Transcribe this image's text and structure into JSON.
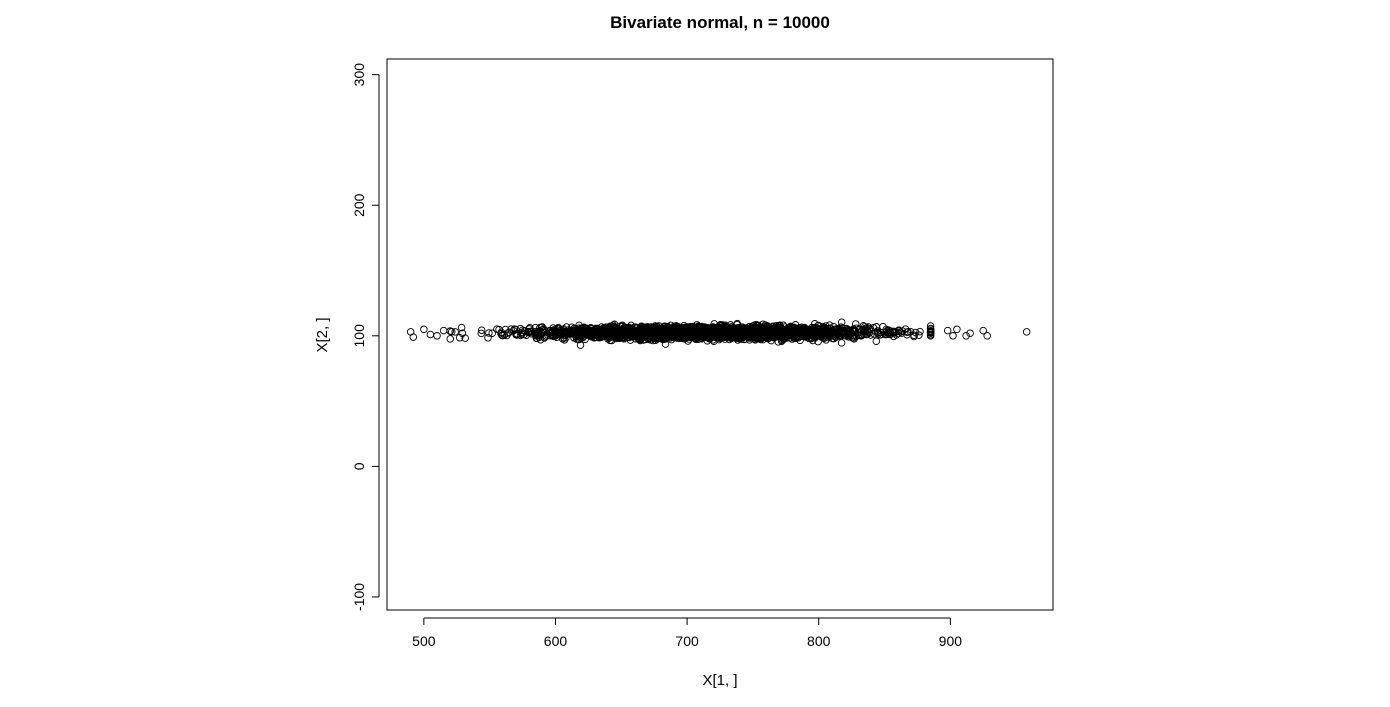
{
  "chart_data": {
    "type": "scatter",
    "title": "Bivariate normal, n = 10000",
    "xlabel": "X[1, ]",
    "ylabel": "X[2, ]",
    "xlim": [
      472,
      978
    ],
    "ylim": [
      -110,
      312
    ],
    "xticks": [
      500,
      600,
      700,
      800,
      900
    ],
    "yticks": [
      -100,
      0,
      100,
      200,
      300
    ],
    "marker": "open-circle",
    "n": 10000,
    "grid": false,
    "legend": "none",
    "colors": {
      "points": "#000000",
      "axes": "#000000",
      "background": "#ffffff"
    },
    "points": [
      [
        490,
        103
      ],
      [
        492,
        99
      ],
      [
        500,
        105
      ],
      [
        505,
        101
      ],
      [
        510,
        100
      ],
      [
        515,
        104
      ],
      [
        898,
        104
      ],
      [
        902,
        100
      ],
      [
        905,
        105
      ],
      [
        912,
        100
      ],
      [
        915,
        102
      ],
      [
        925,
        104
      ],
      [
        928,
        100
      ],
      [
        958,
        103
      ]
    ],
    "cloud": {
      "x_mean": 715,
      "x_sd": 62,
      "y_mean": 102.5,
      "y_sd": 2.3
    }
  }
}
